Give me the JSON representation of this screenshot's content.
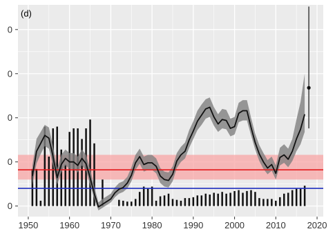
{
  "chart_data": {
    "type": "line",
    "panel_label": "(d)",
    "title": "",
    "xlabel": "",
    "ylabel": "",
    "xlim": [
      1947.5,
      2021.5
    ],
    "ylim": [
      -12,
      228
    ],
    "grid": true,
    "x_ticks": [
      1950,
      1960,
      1970,
      1980,
      1990,
      2000,
      2010,
      2020
    ],
    "y_ticks": [
      0,
      50,
      100,
      150,
      200
    ],
    "y_tick_labels": [
      "0",
      "0",
      "0",
      "0",
      "0"
    ],
    "colors": {
      "background": "#ebebeb",
      "grid": "#ffffff",
      "line": "#111111",
      "ribbon": "#7f7f7f",
      "bars": "#111111",
      "red_line": "#e31a1c",
      "red_band": "#f8a5a5",
      "blue_line": "#1f2fbf"
    },
    "reference_lines": {
      "red": {
        "value": 41,
        "band": [
          30,
          58
        ]
      },
      "blue": {
        "value": 20
      }
    },
    "bars": {
      "x": [
        1951,
        1952,
        1953,
        1954,
        1955,
        1956,
        1957,
        1958,
        1959,
        1960,
        1961,
        1962,
        1963,
        1964,
        1965,
        1966,
        1967,
        1968,
        1969,
        1970,
        1971,
        1972,
        1973,
        1974,
        1975,
        1976,
        1977,
        1978,
        1979,
        1980,
        1981,
        1982,
        1983,
        1984,
        1985,
        1986,
        1987,
        1988,
        1989,
        1990,
        1991,
        1992,
        1993,
        1994,
        1995,
        1996,
        1997,
        1998,
        1999,
        2000,
        2001,
        2002,
        2003,
        2004,
        2005,
        2006,
        2007,
        2008,
        2009,
        2010,
        2011,
        2012,
        2013,
        2014,
        2015,
        2016,
        2017
      ],
      "values": [
        42,
        42,
        6,
        90,
        56,
        88,
        90,
        64,
        47,
        84,
        88,
        88,
        76,
        88,
        98,
        71,
        0,
        30,
        0,
        0,
        0,
        7,
        6,
        5,
        5,
        8,
        16,
        22,
        20,
        22,
        6,
        11,
        12,
        14,
        8,
        7,
        6,
        9,
        9,
        10,
        12,
        12,
        14,
        13,
        15,
        14,
        16,
        14,
        15,
        17,
        18,
        15,
        17,
        18,
        16,
        9,
        8,
        8,
        8,
        6,
        10,
        14,
        15,
        18,
        20,
        20,
        23
      ]
    },
    "series": [
      {
        "x": [
          1951,
          1952,
          1953,
          1954,
          1955,
          1956,
          1957,
          1958,
          1959,
          1960,
          1961,
          1962,
          1963,
          1964,
          1965,
          1966,
          1967,
          1968,
          1969,
          1970,
          1971,
          1972,
          1973,
          1974,
          1975,
          1976,
          1977,
          1978,
          1979,
          1980,
          1981,
          1982,
          1983,
          1984,
          1985,
          1986,
          1987,
          1988,
          1989,
          1990,
          1991,
          1992,
          1993,
          1994,
          1995,
          1996,
          1997,
          1998,
          1999,
          2000,
          2001,
          2002,
          2003,
          2004,
          2005,
          2006,
          2007,
          2008,
          2009,
          2010,
          2011,
          2012,
          2013,
          2014,
          2015,
          2016,
          2017
        ],
        "values": [
          34,
          62,
          71,
          80,
          77,
          56,
          32,
          47,
          54,
          50,
          50,
          46,
          54,
          48,
          32,
          14,
          -1,
          2,
          5,
          8,
          15,
          19,
          21,
          26,
          35,
          49,
          56,
          47,
          49,
          49,
          45,
          34,
          30,
          29,
          36,
          51,
          58,
          62,
          75,
          85,
          96,
          103,
          110,
          112,
          101,
          93,
          98,
          97,
          88,
          90,
          105,
          108,
          108,
          89,
          72,
          59,
          50,
          43,
          47,
          37,
          55,
          58,
          53,
          62,
          76,
          87,
          104
        ],
        "lower": [
          24,
          48,
          59,
          68,
          65,
          46,
          24,
          38,
          46,
          42,
          42,
          38,
          46,
          40,
          24,
          8,
          -5,
          -2,
          1,
          4,
          10,
          14,
          16,
          20,
          28,
          41,
          48,
          39,
          41,
          41,
          37,
          26,
          22,
          21,
          28,
          43,
          50,
          54,
          66,
          76,
          86,
          92,
          99,
          101,
          91,
          84,
          88,
          87,
          79,
          81,
          95,
          97,
          97,
          80,
          64,
          51,
          42,
          36,
          40,
          30,
          46,
          49,
          44,
          51,
          62,
          70,
          84
        ],
        "upper": [
          46,
          76,
          84,
          92,
          89,
          68,
          42,
          58,
          64,
          60,
          60,
          56,
          64,
          58,
          42,
          22,
          4,
          8,
          11,
          14,
          21,
          26,
          28,
          33,
          44,
          58,
          65,
          56,
          58,
          58,
          54,
          43,
          39,
          38,
          45,
          60,
          67,
          72,
          86,
          96,
          108,
          115,
          121,
          123,
          112,
          104,
          110,
          109,
          99,
          101,
          117,
          120,
          120,
          100,
          82,
          69,
          60,
          52,
          56,
          46,
          66,
          70,
          65,
          76,
          98,
          118,
          150
        ]
      }
    ],
    "last_point": {
      "x": 2018,
      "y": 134,
      "lower": 88,
      "upper": 226
    }
  }
}
